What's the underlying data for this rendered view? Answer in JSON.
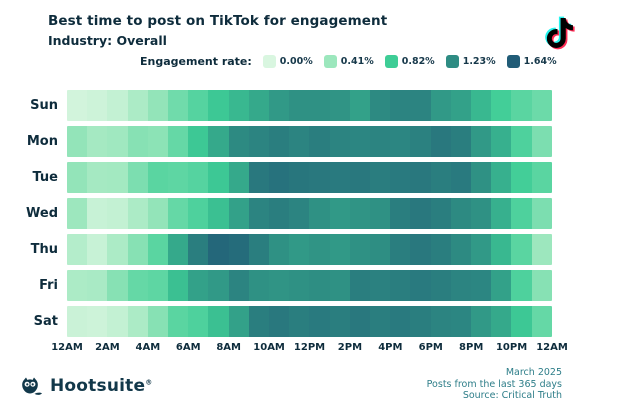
{
  "header": {
    "title": "Best time to post on TikTok for engagement",
    "subtitle": "Industry: Overall"
  },
  "legend": {
    "label": "Engagement rate:",
    "items": [
      {
        "value": "0.00%",
        "color": "#d9f6e0"
      },
      {
        "value": "0.41%",
        "color": "#9ce7bd"
      },
      {
        "value": "0.82%",
        "color": "#3ecd96"
      },
      {
        "value": "1.23%",
        "color": "#2e8c83"
      },
      {
        "value": "1.64%",
        "color": "#215c77"
      }
    ]
  },
  "chart_data": {
    "type": "heatmap",
    "title": "Best time to post on TikTok for engagement",
    "subtitle": "Industry: Overall",
    "unit": "engagement rate %",
    "x_labels": [
      "12AM",
      "2AM",
      "4AM",
      "6AM",
      "8AM",
      "10AM",
      "12PM",
      "2PM",
      "4PM",
      "6PM",
      "8PM",
      "10PM",
      "12AM"
    ],
    "hours_per_row": 24,
    "color_scale": {
      "anchors": [
        0.0,
        0.41,
        0.82,
        1.23,
        1.64
      ],
      "colors": [
        "#d9f6e0",
        "#9ce7bd",
        "#3ecd96",
        "#2e8c83",
        "#215c77"
      ]
    },
    "series": [
      {
        "name": "Sun",
        "values": [
          0.05,
          0.08,
          0.15,
          0.3,
          0.45,
          0.6,
          0.72,
          0.85,
          0.95,
          1.05,
          1.15,
          1.2,
          1.2,
          1.18,
          1.1,
          1.25,
          1.3,
          1.3,
          1.15,
          1.1,
          0.95,
          0.8,
          0.7,
          0.62
        ]
      },
      {
        "name": "Mon",
        "values": [
          0.45,
          0.35,
          0.38,
          0.5,
          0.48,
          0.65,
          0.85,
          1.05,
          1.25,
          1.3,
          1.35,
          1.3,
          1.35,
          1.3,
          1.28,
          1.3,
          1.28,
          1.32,
          1.4,
          1.35,
          1.15,
          1.0,
          0.75,
          0.55
        ]
      },
      {
        "name": "Tue",
        "values": [
          0.45,
          0.35,
          0.36,
          0.55,
          0.7,
          0.68,
          0.72,
          0.85,
          1.05,
          1.4,
          1.45,
          1.42,
          1.4,
          1.38,
          1.4,
          1.36,
          1.38,
          1.4,
          1.35,
          1.38,
          1.2,
          1.0,
          0.8,
          0.7
        ]
      },
      {
        "name": "Wed",
        "values": [
          0.4,
          0.12,
          0.15,
          0.3,
          0.45,
          0.65,
          0.75,
          0.9,
          1.1,
          1.3,
          1.35,
          1.3,
          1.2,
          1.15,
          1.18,
          1.2,
          1.35,
          1.4,
          1.35,
          1.25,
          1.2,
          1.0,
          0.75,
          0.55
        ]
      },
      {
        "name": "Thu",
        "values": [
          0.25,
          0.12,
          0.3,
          0.5,
          0.7,
          1.05,
          1.35,
          1.55,
          1.5,
          1.35,
          1.2,
          1.15,
          1.18,
          1.15,
          1.2,
          1.22,
          1.35,
          1.4,
          1.35,
          1.25,
          1.15,
          0.95,
          0.7,
          0.4
        ]
      },
      {
        "name": "Fri",
        "values": [
          0.3,
          0.32,
          0.5,
          0.65,
          0.68,
          0.9,
          1.1,
          1.15,
          1.3,
          1.2,
          1.18,
          1.2,
          1.22,
          1.2,
          1.35,
          1.32,
          1.35,
          1.38,
          1.35,
          1.3,
          1.28,
          1.1,
          0.75,
          0.5
        ]
      },
      {
        "name": "Sat",
        "values": [
          0.1,
          0.08,
          0.15,
          0.3,
          0.5,
          0.7,
          0.75,
          0.9,
          1.1,
          1.35,
          1.4,
          1.35,
          1.38,
          1.35,
          1.4,
          1.35,
          1.38,
          1.35,
          1.3,
          1.28,
          1.15,
          1.05,
          0.85,
          0.65
        ]
      }
    ]
  },
  "footer": {
    "brand": "Hootsuite",
    "brand_mark": "®",
    "meta": [
      "March 2025",
      "Posts from the last 365 days",
      "Source: Critical Truth"
    ]
  },
  "colors": {
    "text_navy": "#0e2c3c",
    "footer_teal": "#2e7e89",
    "tiktok_cyan": "#25f4ee",
    "tiktok_pink": "#fe2c55",
    "tiktok_black": "#010101"
  }
}
